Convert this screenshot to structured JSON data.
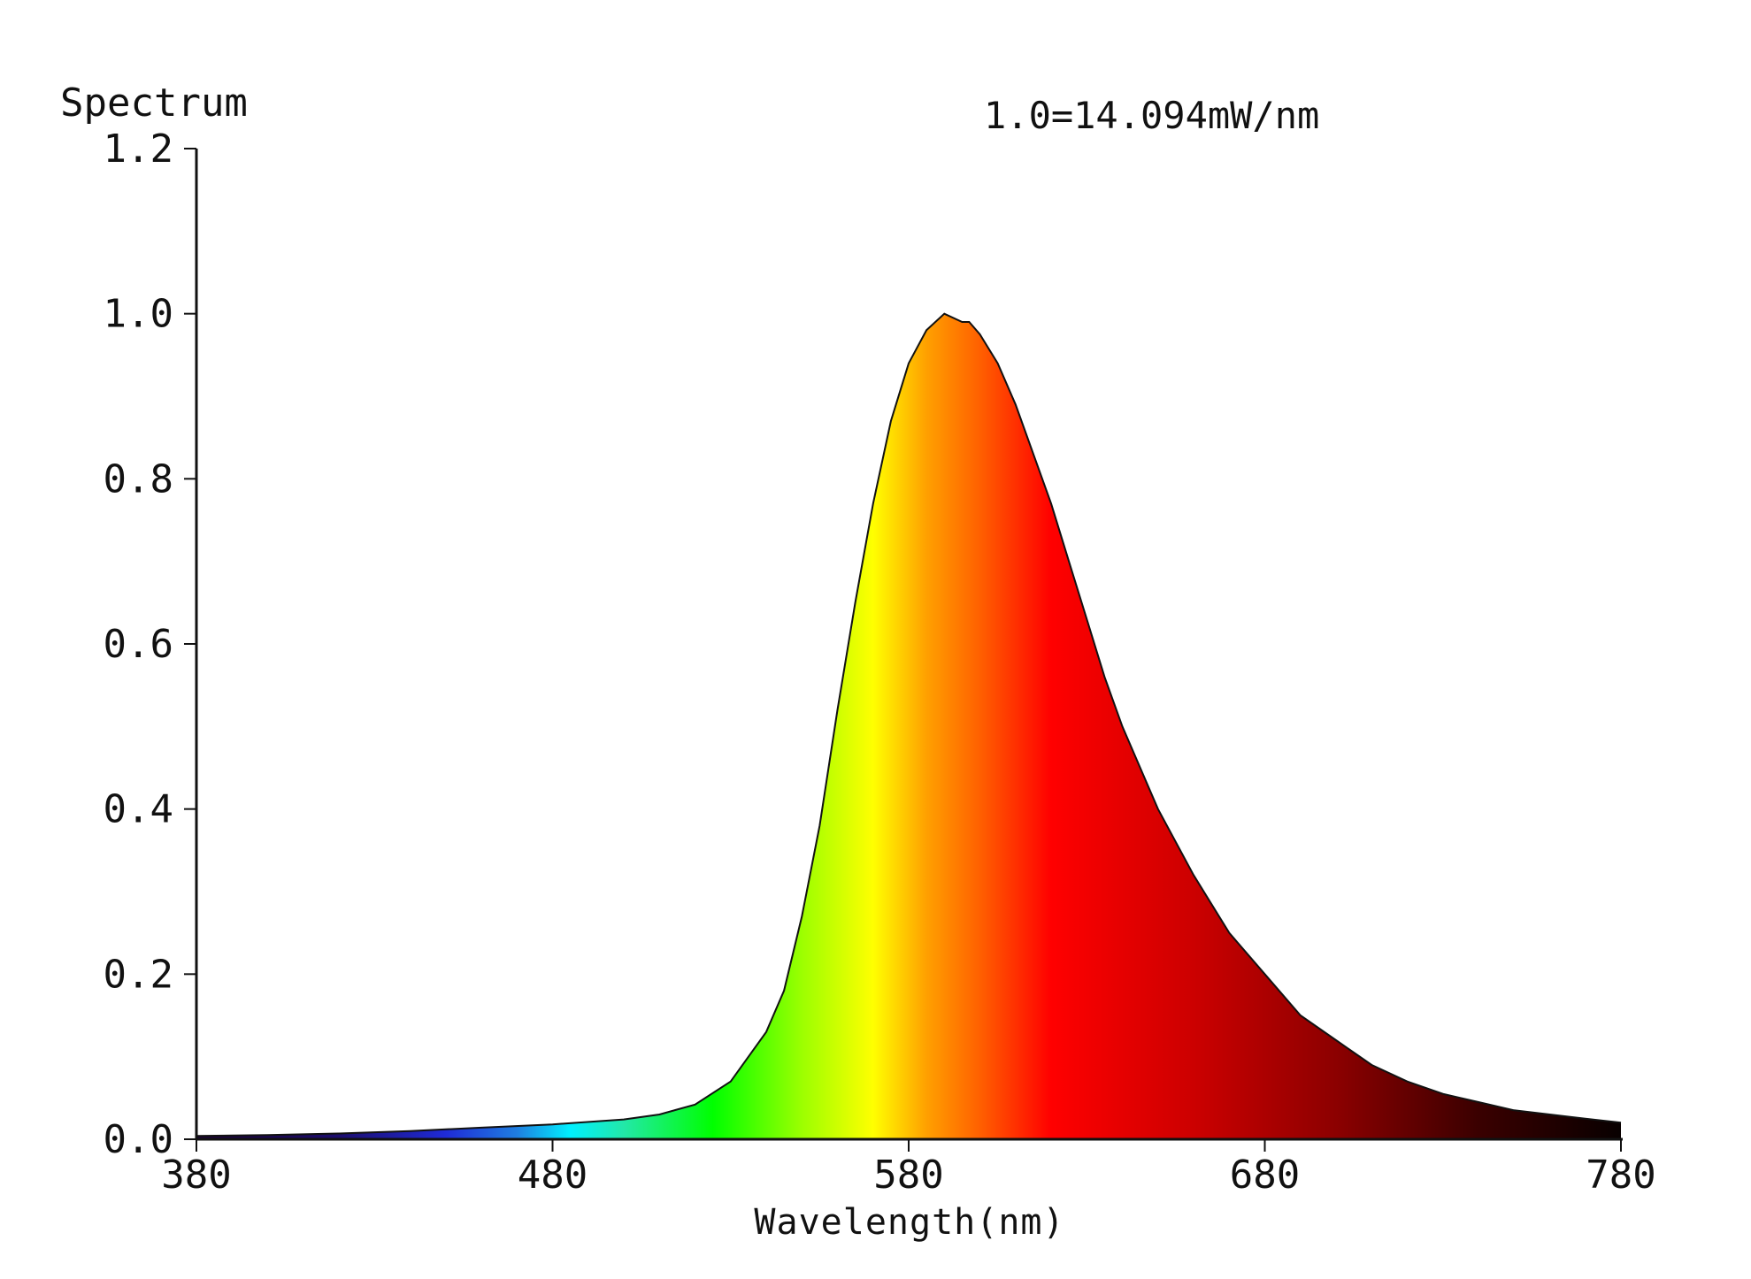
{
  "chart_data": {
    "type": "area",
    "ylabel": "Spectrum",
    "xlabel": "Wavelength(nm)",
    "annotation": "1.0=14.094mW/nm",
    "xlim": [
      380,
      780
    ],
    "ylim": [
      0,
      1.2
    ],
    "x_ticks": [
      "380",
      "480",
      "580",
      "680",
      "780"
    ],
    "x_tick_values": [
      380,
      480,
      580,
      680,
      780
    ],
    "y_ticks": [
      "0.0",
      "0.2",
      "0.4",
      "0.6",
      "0.8",
      "1.0",
      "1.2"
    ],
    "y_tick_values": [
      0,
      0.2,
      0.4,
      0.6,
      0.8,
      1.0,
      1.2
    ],
    "grid": false,
    "fill": "wavelength-color-gradient",
    "series": [
      {
        "x": [
          380,
          400,
          420,
          440,
          460,
          480,
          500,
          510,
          520,
          530,
          540,
          545,
          550,
          555,
          560,
          565,
          570,
          575,
          580,
          585,
          590,
          595,
          597,
          600,
          605,
          610,
          615,
          620,
          625,
          630,
          635,
          640,
          650,
          660,
          670,
          680,
          690,
          700,
          710,
          720,
          730,
          740,
          750,
          760,
          770,
          780
        ],
        "values": [
          0.004,
          0.005,
          0.007,
          0.01,
          0.014,
          0.018,
          0.024,
          0.03,
          0.042,
          0.07,
          0.13,
          0.18,
          0.27,
          0.38,
          0.52,
          0.65,
          0.77,
          0.87,
          0.94,
          0.98,
          1.0,
          0.99,
          0.99,
          0.975,
          0.94,
          0.89,
          0.83,
          0.77,
          0.7,
          0.63,
          0.56,
          0.5,
          0.4,
          0.32,
          0.25,
          0.2,
          0.15,
          0.12,
          0.09,
          0.07,
          0.055,
          0.045,
          0.035,
          0.03,
          0.025,
          0.02
        ]
      }
    ],
    "gradient_stops": [
      {
        "wavelength": 380,
        "color": "#1a0033"
      },
      {
        "wavelength": 420,
        "color": "#1c0d6e"
      },
      {
        "wavelength": 450,
        "color": "#1f2bd6"
      },
      {
        "wavelength": 470,
        "color": "#1f7ee0"
      },
      {
        "wavelength": 485,
        "color": "#00f0ff"
      },
      {
        "wavelength": 500,
        "color": "#22e8a8"
      },
      {
        "wavelength": 525,
        "color": "#00ff00"
      },
      {
        "wavelength": 550,
        "color": "#9cff00"
      },
      {
        "wavelength": 570,
        "color": "#ffff00"
      },
      {
        "wavelength": 585,
        "color": "#ffa000"
      },
      {
        "wavelength": 600,
        "color": "#ff6000"
      },
      {
        "wavelength": 620,
        "color": "#ff0000"
      },
      {
        "wavelength": 660,
        "color": "#cc0000"
      },
      {
        "wavelength": 700,
        "color": "#8c0000"
      },
      {
        "wavelength": 740,
        "color": "#3a0000"
      },
      {
        "wavelength": 780,
        "color": "#080000"
      }
    ]
  }
}
